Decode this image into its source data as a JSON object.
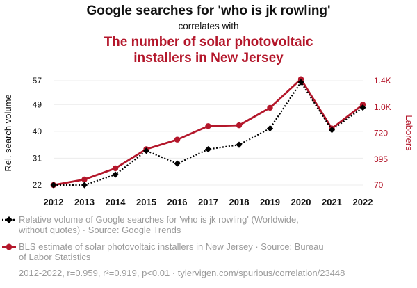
{
  "chart_data": {
    "type": "line",
    "title": "Google searches for 'who is jk rowling'",
    "subtitle": "correlates with",
    "title2": [
      "The number of solar photovoltaic",
      "installers in New Jersey"
    ],
    "x": [
      2012,
      2013,
      2014,
      2015,
      2016,
      2017,
      2018,
      2019,
      2020,
      2021,
      2022
    ],
    "ylabel_left": "Rel. search volume",
    "ylabel_right": "Laborers",
    "y_left_ticks": [
      22,
      31,
      40,
      49,
      57
    ],
    "y_left_range": [
      22,
      57
    ],
    "y_right_ticks": [
      {
        "value": 70,
        "label": "70"
      },
      {
        "value": 395,
        "label": "395"
      },
      {
        "value": 720,
        "label": "720"
      },
      {
        "value": 1050,
        "label": "1.0K"
      },
      {
        "value": 1380,
        "label": "1.4K"
      }
    ],
    "y_right_range": [
      70,
      1380
    ],
    "series": [
      {
        "name": "Relative volume of Google searches for 'who is jk rowling' (Worldwide, without quotes) · Source: Google Trends",
        "legend_lines": [
          "Relative volume of Google searches for 'who is jk rowling' (Worldwide,",
          "without quotes) · Source: Google Trends"
        ],
        "axis": "left",
        "color": "#000000",
        "marker": "diamond",
        "style": "dotted",
        "values": [
          22,
          22,
          25.5,
          33.5,
          29.2,
          34,
          35.5,
          41,
          56.5,
          40.5,
          48
        ]
      },
      {
        "name": "BLS estimate of solar photovoltaic installers in New Jersey · Source: Bureau of Labor Statistics",
        "legend_lines": [
          "BLS estimate of solar photovoltaic installers in New Jersey · Source: Bureau",
          "of Labor Statistics"
        ],
        "axis": "right",
        "color": "#b4172b",
        "marker": "circle",
        "style": "solid",
        "values": [
          70,
          140,
          280,
          520,
          640,
          810,
          820,
          1040,
          1400,
          780,
          1080
        ]
      }
    ],
    "grid": true,
    "legend_placement": "bottom"
  },
  "footer": "2012-2022, r=0.959, r²=0.919, p<0.01 · tylervigen.com/spurious/correlation/23448"
}
